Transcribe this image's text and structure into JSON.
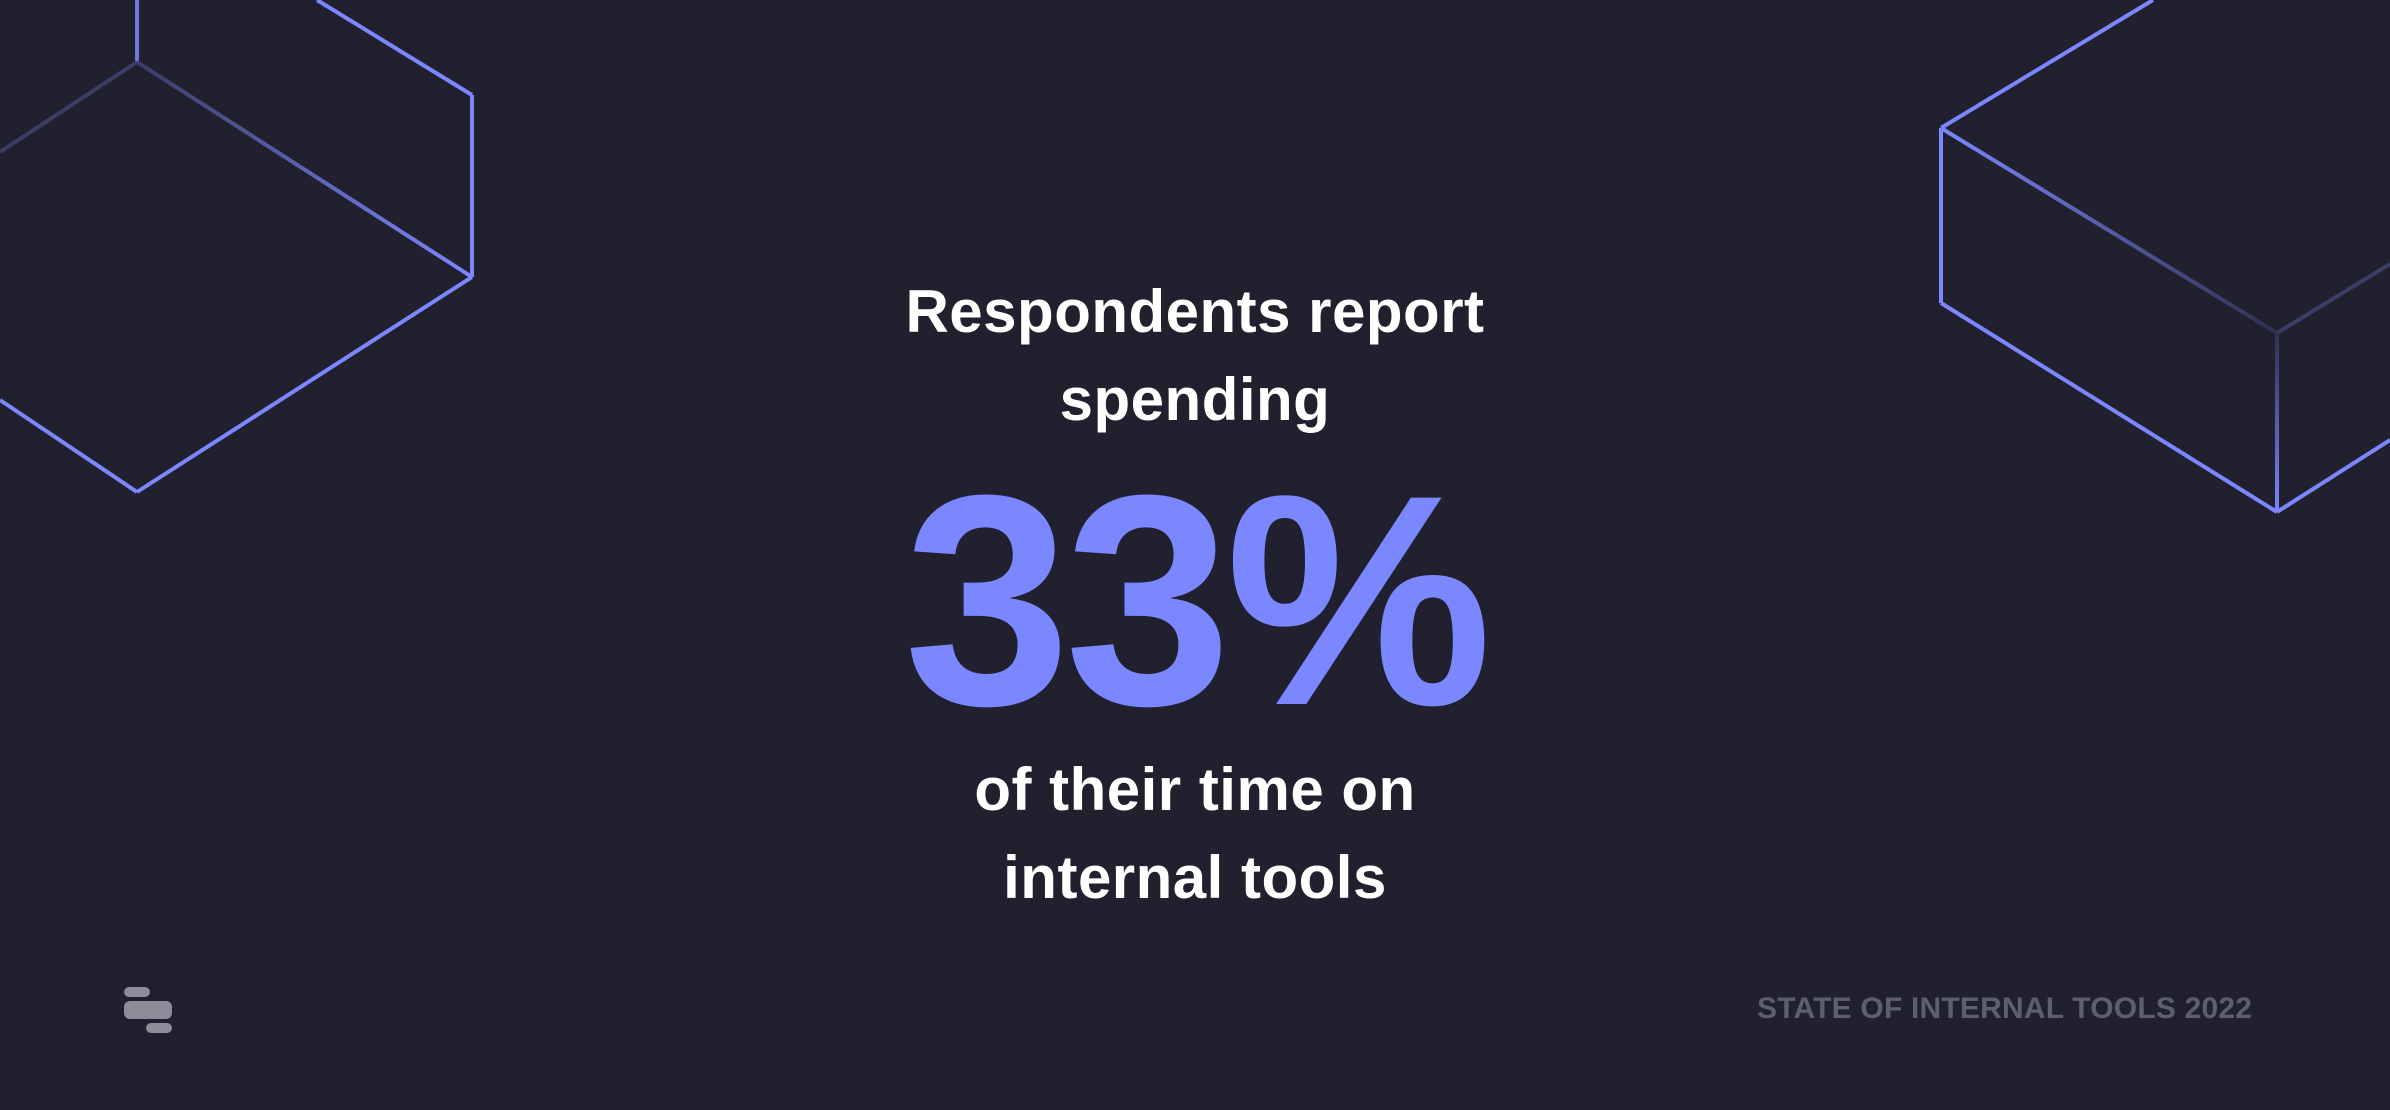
{
  "headline": {
    "line1": "Respondents report",
    "line2": "spending",
    "stat": "33%",
    "line3": "of their time on",
    "line4": "internal tools"
  },
  "footer": {
    "label": "STATE OF INTERNAL TOOLS 2022"
  },
  "logo": {
    "icon": "retool-logo-icon"
  },
  "colors": {
    "background": "#20202e",
    "accent": "#7b87ff",
    "text": "#ffffff",
    "footer": "#5d5e6e"
  }
}
